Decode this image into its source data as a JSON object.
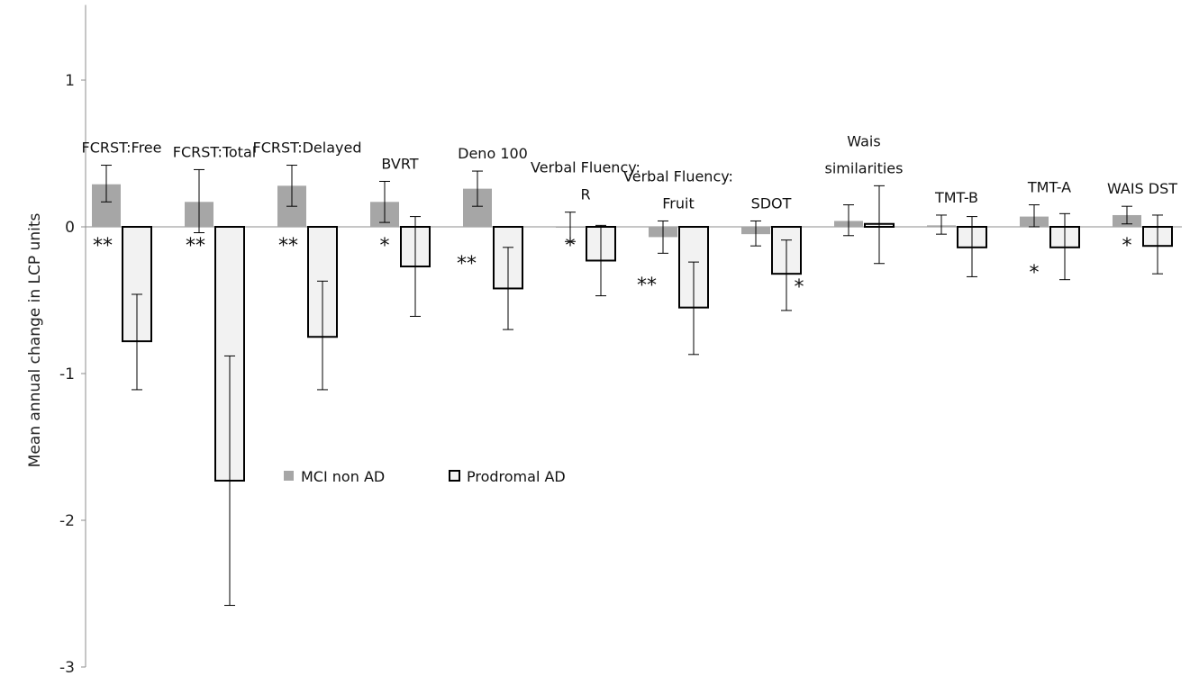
{
  "chart_data": {
    "type": "bar",
    "ylabel": "Mean annual change in LCP units",
    "ylim": [
      -3,
      1.5
    ],
    "yticks": [
      1,
      0,
      -1,
      -2,
      -3
    ],
    "grid": false,
    "legend_position": "lower-center",
    "categories": [
      {
        "lines": [
          "FCRST:Free"
        ]
      },
      {
        "lines": [
          "FCRST:Total"
        ]
      },
      {
        "lines": [
          "FCRST:Delayed"
        ]
      },
      {
        "lines": [
          "BVRT"
        ]
      },
      {
        "lines": [
          "Deno 100"
        ]
      },
      {
        "lines": [
          "Verbal Fluency:",
          "R"
        ]
      },
      {
        "lines": [
          "Verbal Fluency:",
          "Fruit"
        ]
      },
      {
        "lines": [
          "SDOT"
        ]
      },
      {
        "lines": [
          "Wais",
          "similarities"
        ]
      },
      {
        "lines": [
          "TMT-B"
        ]
      },
      {
        "lines": [
          "TMT-A"
        ]
      },
      {
        "lines": [
          "WAIS DST"
        ]
      }
    ],
    "series": [
      {
        "name": "MCI non AD",
        "color": "#a6a6a6",
        "values": [
          0.29,
          0.17,
          0.28,
          0.17,
          0.26,
          0.0,
          -0.07,
          -0.05,
          0.04,
          0.01,
          0.07,
          0.08
        ],
        "error_low": [
          0.17,
          -0.04,
          0.14,
          0.03,
          0.14,
          -0.1,
          -0.18,
          -0.13,
          -0.06,
          -0.05,
          0.0,
          0.02
        ],
        "error_high": [
          0.42,
          0.39,
          0.42,
          0.31,
          0.38,
          0.1,
          0.04,
          0.04,
          0.15,
          0.08,
          0.15,
          0.14
        ]
      },
      {
        "name": "Prodromal AD",
        "color": "#f2f2f2",
        "values": [
          -0.78,
          -1.73,
          -0.75,
          -0.27,
          -0.42,
          -0.23,
          -0.55,
          -0.32,
          0.02,
          -0.14,
          -0.14,
          -0.13
        ],
        "error_low": [
          -1.11,
          -2.58,
          -1.11,
          -0.61,
          -0.7,
          -0.47,
          -0.87,
          -0.57,
          -0.25,
          -0.34,
          -0.36,
          -0.32
        ],
        "error_high": [
          -0.46,
          -0.88,
          -0.37,
          0.07,
          -0.14,
          0.01,
          -0.24,
          -0.09,
          0.28,
          0.07,
          0.09,
          0.08
        ]
      }
    ],
    "annotations": [
      {
        "text": "**",
        "category": 0
      },
      {
        "text": "**",
        "category": 1
      },
      {
        "text": "**",
        "category": 2
      },
      {
        "text": "*",
        "category": 3
      },
      {
        "text": "**",
        "category": 4
      },
      {
        "text": "*",
        "category": 5
      },
      {
        "text": "**",
        "category": 6
      },
      {
        "text": "*",
        "category": 7
      },
      {
        "text": "*",
        "category": 10
      },
      {
        "text": "*",
        "category": 11
      }
    ]
  }
}
